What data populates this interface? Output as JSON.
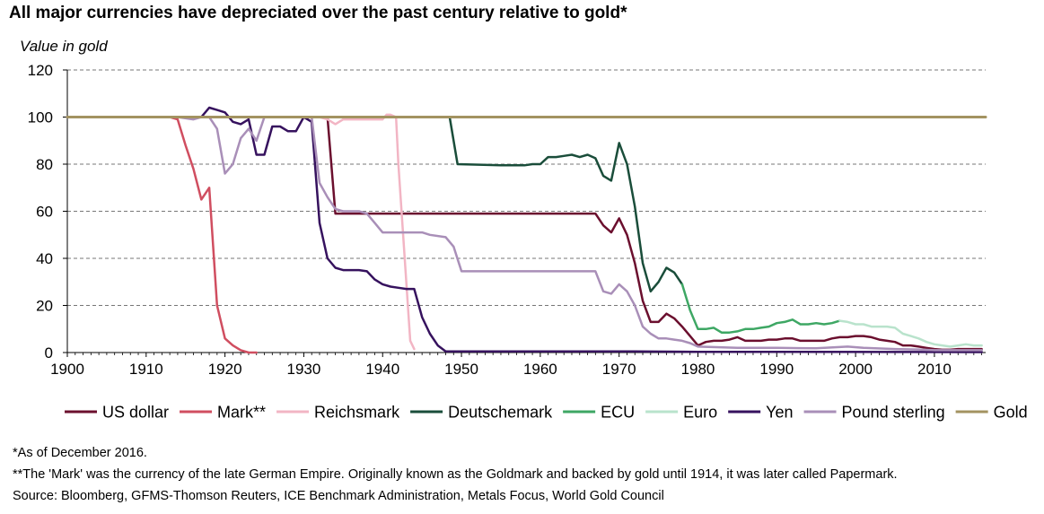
{
  "chart_data": {
    "type": "line",
    "title": "All major currencies have depreciated over the past century relative to gold*",
    "ylabel": "Value in gold",
    "xlabel": "",
    "xlim": [
      1900,
      2016.5
    ],
    "ylim": [
      0,
      120
    ],
    "x_ticks": [
      1900,
      1910,
      1920,
      1930,
      1940,
      1950,
      1960,
      1970,
      1980,
      1990,
      2000,
      2010
    ],
    "y_ticks": [
      0,
      20,
      40,
      60,
      80,
      100,
      120
    ],
    "grid": "horizontal dashed",
    "legend_position": "bottom",
    "series": [
      {
        "name": "US dollar",
        "color": "#6b0f2e",
        "points": [
          [
            1900,
            100
          ],
          [
            1933,
            100
          ],
          [
            1934,
            59
          ],
          [
            1967,
            59
          ],
          [
            1968,
            54
          ],
          [
            1969,
            51
          ],
          [
            1970,
            57
          ],
          [
            1971,
            50
          ],
          [
            1972,
            38
          ],
          [
            1973,
            22
          ],
          [
            1974,
            13
          ],
          [
            1975,
            13
          ],
          [
            1976,
            16.5
          ],
          [
            1977,
            14.5
          ],
          [
            1978,
            11
          ],
          [
            1979,
            7
          ],
          [
            1980,
            3
          ],
          [
            1981,
            4.5
          ],
          [
            1982,
            5
          ],
          [
            1983,
            5
          ],
          [
            1984,
            5.5
          ],
          [
            1985,
            6.5
          ],
          [
            1986,
            5
          ],
          [
            1987,
            5
          ],
          [
            1988,
            5
          ],
          [
            1989,
            5.5
          ],
          [
            1990,
            5.5
          ],
          [
            1991,
            6
          ],
          [
            1992,
            6
          ],
          [
            1993,
            5
          ],
          [
            1994,
            5
          ],
          [
            1995,
            5
          ],
          [
            1996,
            5
          ],
          [
            1997,
            6
          ],
          [
            1998,
            6.5
          ],
          [
            1999,
            6.5
          ],
          [
            2000,
            7
          ],
          [
            2001,
            7
          ],
          [
            2002,
            6.5
          ],
          [
            2003,
            5.5
          ],
          [
            2004,
            5
          ],
          [
            2005,
            4.5
          ],
          [
            2006,
            3
          ],
          [
            2007,
            3
          ],
          [
            2008,
            2.5
          ],
          [
            2009,
            2
          ],
          [
            2010,
            1.5
          ],
          [
            2011,
            1.2
          ],
          [
            2012,
            1.2
          ],
          [
            2013,
            1.5
          ],
          [
            2014,
            1.5
          ],
          [
            2015,
            1.5
          ],
          [
            2016,
            1.5
          ]
        ]
      },
      {
        "name": "Mark**",
        "color": "#d04e60",
        "points": [
          [
            1900,
            100
          ],
          [
            1913,
            100
          ],
          [
            1914,
            99
          ],
          [
            1915,
            88
          ],
          [
            1916,
            78
          ],
          [
            1917,
            65
          ],
          [
            1918,
            70
          ],
          [
            1919,
            20
          ],
          [
            1920,
            6
          ],
          [
            1921,
            3
          ],
          [
            1922,
            1
          ],
          [
            1923,
            0
          ],
          [
            1924,
            0
          ]
        ]
      },
      {
        "name": "Reichsmark",
        "color": "#f2b5c4",
        "points": [
          [
            1924,
            100
          ],
          [
            1932,
            100
          ],
          [
            1933,
            99
          ],
          [
            1934,
            97
          ],
          [
            1935,
            99
          ],
          [
            1937,
            99
          ],
          [
            1939,
            99
          ],
          [
            1940,
            99
          ],
          [
            1940.5,
            101
          ],
          [
            1941,
            101
          ],
          [
            1941.7,
            100
          ],
          [
            1942,
            80
          ],
          [
            1943,
            30
          ],
          [
            1943.5,
            5
          ],
          [
            1944,
            1.5
          ]
        ]
      },
      {
        "name": "Deutschemark",
        "color": "#1a4d3a",
        "points": [
          [
            1948.5,
            100
          ],
          [
            1949.5,
            80
          ],
          [
            1955,
            79.5
          ],
          [
            1958,
            79.5
          ],
          [
            1959,
            80
          ],
          [
            1960,
            80
          ],
          [
            1961,
            83
          ],
          [
            1962,
            83
          ],
          [
            1963,
            83.5
          ],
          [
            1964,
            84
          ],
          [
            1965,
            83
          ],
          [
            1966,
            84
          ],
          [
            1967,
            82.5
          ],
          [
            1968,
            75
          ],
          [
            1969,
            73
          ],
          [
            1970,
            89
          ],
          [
            1971,
            80
          ],
          [
            1972,
            62
          ],
          [
            1973,
            38
          ],
          [
            1974,
            26
          ],
          [
            1975,
            30
          ],
          [
            1976,
            36
          ],
          [
            1977,
            34
          ],
          [
            1978,
            29
          ]
        ]
      },
      {
        "name": "ECU",
        "color": "#3ea764",
        "points": [
          [
            1978,
            29
          ],
          [
            1979,
            18
          ],
          [
            1980,
            10
          ],
          [
            1981,
            10
          ],
          [
            1982,
            10.5
          ],
          [
            1983,
            8.5
          ],
          [
            1984,
            8.5
          ],
          [
            1985,
            9
          ],
          [
            1986,
            10
          ],
          [
            1987,
            10
          ],
          [
            1988,
            10.5
          ],
          [
            1989,
            11
          ],
          [
            1990,
            12.5
          ],
          [
            1991,
            13
          ],
          [
            1992,
            14
          ],
          [
            1993,
            12
          ],
          [
            1994,
            12
          ],
          [
            1995,
            12.5
          ],
          [
            1996,
            12
          ],
          [
            1997,
            12.5
          ],
          [
            1998,
            13.5
          ]
        ]
      },
      {
        "name": "Euro",
        "color": "#b9e3cc",
        "points": [
          [
            1998,
            13.5
          ],
          [
            1999,
            13
          ],
          [
            2000,
            12
          ],
          [
            2001,
            12
          ],
          [
            2002,
            11
          ],
          [
            2003,
            11
          ],
          [
            2004,
            11
          ],
          [
            2005,
            10.5
          ],
          [
            2006,
            8
          ],
          [
            2007,
            7
          ],
          [
            2008,
            6
          ],
          [
            2009,
            4.5
          ],
          [
            2010,
            3.5
          ],
          [
            2011,
            3
          ],
          [
            2012,
            2.5
          ],
          [
            2013,
            3
          ],
          [
            2014,
            3.5
          ],
          [
            2015,
            3
          ],
          [
            2016,
            3
          ]
        ]
      },
      {
        "name": "Yen",
        "color": "#36125e",
        "points": [
          [
            1900,
            100
          ],
          [
            1917,
            100
          ],
          [
            1918,
            104
          ],
          [
            1919,
            103
          ],
          [
            1920,
            102
          ],
          [
            1921,
            98
          ],
          [
            1922,
            97
          ],
          [
            1923,
            99
          ],
          [
            1924,
            84
          ],
          [
            1925,
            84
          ],
          [
            1926,
            96
          ],
          [
            1927,
            96
          ],
          [
            1928,
            94
          ],
          [
            1929,
            94
          ],
          [
            1930,
            100
          ],
          [
            1931,
            98
          ],
          [
            1932,
            55
          ],
          [
            1933,
            40
          ],
          [
            1934,
            36
          ],
          [
            1935,
            35
          ],
          [
            1936,
            35
          ],
          [
            1937,
            35
          ],
          [
            1938,
            34.5
          ],
          [
            1939,
            31
          ],
          [
            1940,
            29
          ],
          [
            1941,
            28
          ],
          [
            1942,
            27.5
          ],
          [
            1943,
            27
          ],
          [
            1944,
            27
          ],
          [
            1945,
            15
          ],
          [
            1946,
            8
          ],
          [
            1947,
            3
          ],
          [
            1948,
            0.5
          ],
          [
            1960,
            0.5
          ],
          [
            1972,
            0.5
          ],
          [
            1980,
            0.3
          ],
          [
            2016,
            0.2
          ]
        ]
      },
      {
        "name": "Pound sterling",
        "color": "#a98fb8",
        "points": [
          [
            1900,
            100
          ],
          [
            1914,
            100
          ],
          [
            1916,
            99
          ],
          [
            1917,
            100
          ],
          [
            1918,
            100
          ],
          [
            1919,
            95
          ],
          [
            1920,
            76
          ],
          [
            1921,
            80
          ],
          [
            1922,
            91
          ],
          [
            1923,
            95
          ],
          [
            1924,
            90
          ],
          [
            1925,
            100
          ],
          [
            1931,
            100
          ],
          [
            1932,
            72
          ],
          [
            1933,
            66
          ],
          [
            1934,
            61
          ],
          [
            1935,
            60
          ],
          [
            1937,
            60
          ],
          [
            1938,
            59
          ],
          [
            1939,
            55
          ],
          [
            1940,
            51
          ],
          [
            1941,
            51
          ],
          [
            1945,
            51
          ],
          [
            1946,
            50
          ],
          [
            1948,
            49
          ],
          [
            1949,
            45
          ],
          [
            1950,
            34.5
          ],
          [
            1967,
            34.5
          ],
          [
            1968,
            26
          ],
          [
            1969,
            25
          ],
          [
            1970,
            29
          ],
          [
            1971,
            26
          ],
          [
            1972,
            20
          ],
          [
            1973,
            11
          ],
          [
            1974,
            8
          ],
          [
            1975,
            6
          ],
          [
            1976,
            6
          ],
          [
            1977,
            5.5
          ],
          [
            1978,
            5
          ],
          [
            1979,
            4
          ],
          [
            1980,
            2.5
          ],
          [
            1985,
            2
          ],
          [
            1990,
            2
          ],
          [
            1995,
            1.8
          ],
          [
            1999,
            2.5
          ],
          [
            2001,
            2
          ],
          [
            2005,
            1.5
          ],
          [
            2008,
            1.3
          ],
          [
            2010,
            1
          ],
          [
            2016,
            1
          ]
        ]
      },
      {
        "name": "Gold",
        "color": "#a39361",
        "points": [
          [
            1900,
            100
          ],
          [
            2016.5,
            100
          ]
        ]
      }
    ],
    "footnotes": [
      "*As of December 2016.",
      "**The 'Mark' was the currency of the late German Empire. Originally known as the Goldmark and backed by gold until 1914, it was later called Papermark.",
      "Source: Bloomberg, GFMS-Thomson Reuters, ICE Benchmark Administration, Metals Focus, World Gold Council"
    ]
  }
}
